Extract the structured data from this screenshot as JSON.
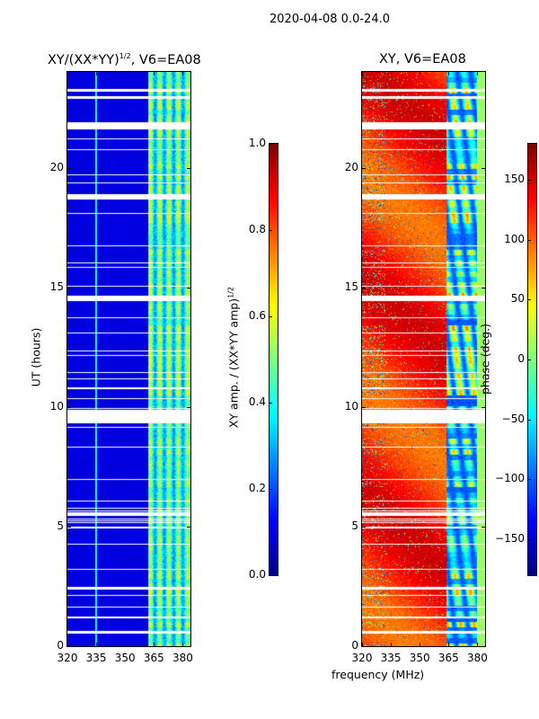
{
  "chart_data": [
    {
      "type": "heatmap",
      "suptitle": "2020-04-08 0.0-24.0",
      "title": "XY/(XX*YY)",
      "title_sup": "1/2",
      "title_suffix": ", V6=EA08",
      "xlabel": "frequency (MHz)",
      "ylabel": "UT (hours)",
      "xlim": [
        320,
        384
      ],
      "ylim": [
        0,
        24
      ],
      "xticks": [
        "320",
        "335",
        "350",
        "365",
        "380"
      ],
      "yticks": [
        "0",
        "5",
        "10",
        "15",
        "20"
      ],
      "colormap": "jet",
      "colorbar": {
        "label": "XY amp. / (XX*YY amp)",
        "label_sup": "1/2",
        "range": [
          0.0,
          1.0
        ],
        "ticks": [
          "0.0",
          "0.2",
          "0.4",
          "0.6",
          "0.8",
          "1.0"
        ]
      },
      "description_values": {
        "low_band_320_362_MHz": 0.05,
        "high_band_362_382_MHz": [
          0.2,
          0.65
        ]
      }
    },
    {
      "type": "heatmap",
      "title": "XY, V6=EA08",
      "xlim": [
        320,
        384
      ],
      "ylim": [
        0,
        24
      ],
      "xticks": [
        "320",
        "335",
        "350",
        "365",
        "380"
      ],
      "yticks": [
        "0",
        "5",
        "10",
        "15",
        "20"
      ],
      "colormap": "jet",
      "colorbar": {
        "label": "phase (deg.)",
        "range": [
          -180,
          180
        ],
        "ticks": [
          "-150",
          "-100",
          "-50",
          "0",
          "50",
          "100",
          "150"
        ]
      },
      "description_values": {
        "band_320_364_MHz_deg": [
          90,
          150
        ],
        "band_364_380_MHz_deg": [
          -150,
          60
        ],
        "band_380_384_MHz_deg": 10
      }
    }
  ],
  "flagged_hours": [
    [
      0.55,
      0.65
    ],
    [
      1.2,
      1.25
    ],
    [
      2.4,
      2.5
    ],
    [
      4.95,
      5.0
    ],
    [
      5.45,
      5.6
    ],
    [
      9.35,
      9.9
    ],
    [
      10.35,
      10.4
    ],
    [
      14.45,
      14.65
    ],
    [
      18.7,
      18.9
    ],
    [
      21.6,
      21.9
    ],
    [
      22.9,
      23.0
    ],
    [
      23.2,
      23.3
    ]
  ]
}
